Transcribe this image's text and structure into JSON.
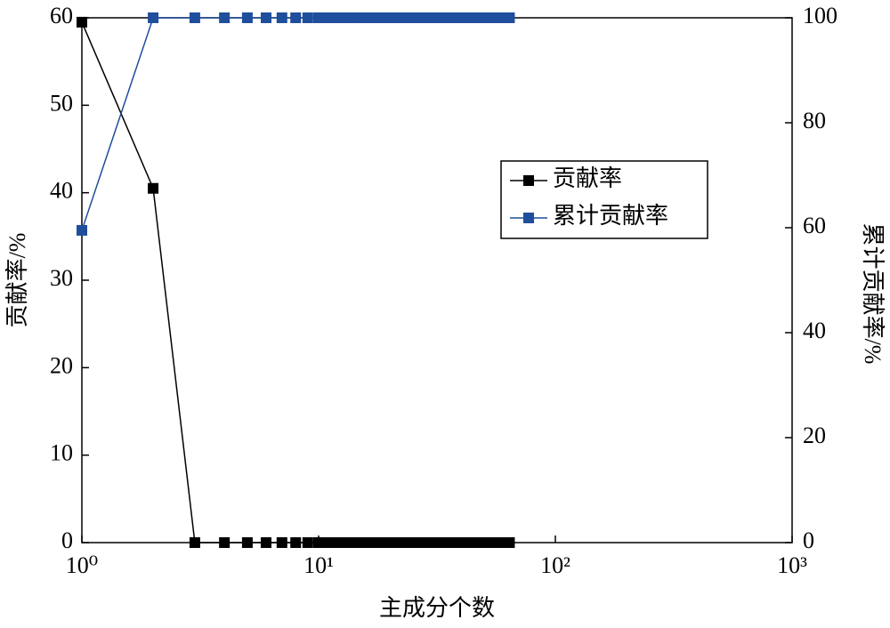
{
  "chart_data": {
    "type": "line",
    "xlabel": "主成分个数",
    "ylabel": "贡献率/%",
    "y2label": "累计贡献率/%",
    "xscale": "log",
    "x": [
      1,
      2,
      3,
      4,
      5,
      6,
      7,
      8,
      9,
      10,
      11,
      12,
      13,
      14,
      15,
      16,
      17,
      18,
      19,
      20,
      21,
      22,
      23,
      24,
      25,
      26,
      27,
      28,
      29,
      30,
      31,
      32,
      33,
      34,
      35,
      36,
      37,
      38,
      39,
      40,
      41,
      42,
      43,
      44,
      45,
      46,
      47,
      48,
      49,
      50,
      51,
      52,
      53,
      54,
      55,
      56,
      57,
      58,
      59,
      60,
      61,
      62,
      63,
      64
    ],
    "xlim": [
      1,
      1000
    ],
    "xticks": [
      {
        "value": 1,
        "label": "10⁰"
      },
      {
        "value": 10,
        "label": "10¹"
      },
      {
        "value": 100,
        "label": "10²"
      },
      {
        "value": 1000,
        "label": "10³"
      }
    ],
    "ylim": [
      0,
      60
    ],
    "yticks": [
      0,
      10,
      20,
      30,
      40,
      50,
      60
    ],
    "y2lim": [
      0,
      100
    ],
    "y2ticks": [
      0,
      20,
      40,
      60,
      80,
      100
    ],
    "legend": "upper right",
    "series": [
      {
        "name": "贡献率",
        "color": "#000000",
        "values": [
          59.5,
          40.5,
          0,
          0,
          0,
          0,
          0,
          0,
          0,
          0,
          0,
          0,
          0,
          0,
          0,
          0,
          0,
          0,
          0,
          0,
          0,
          0,
          0,
          0,
          0,
          0,
          0,
          0,
          0,
          0,
          0,
          0,
          0,
          0,
          0,
          0,
          0,
          0,
          0,
          0,
          0,
          0,
          0,
          0,
          0,
          0,
          0,
          0,
          0,
          0,
          0,
          0,
          0,
          0,
          0,
          0,
          0,
          0,
          0,
          0,
          0,
          0,
          0,
          0
        ]
      },
      {
        "name": "累计贡献率",
        "color": "#1f4e9c",
        "axis": "y2",
        "values": [
          59.5,
          100,
          100,
          100,
          100,
          100,
          100,
          100,
          100,
          100,
          100,
          100,
          100,
          100,
          100,
          100,
          100,
          100,
          100,
          100,
          100,
          100,
          100,
          100,
          100,
          100,
          100,
          100,
          100,
          100,
          100,
          100,
          100,
          100,
          100,
          100,
          100,
          100,
          100,
          100,
          100,
          100,
          100,
          100,
          100,
          100,
          100,
          100,
          100,
          100,
          100,
          100,
          100,
          100,
          100,
          100,
          100,
          100,
          100,
          100,
          100,
          100,
          100,
          100
        ]
      }
    ]
  }
}
